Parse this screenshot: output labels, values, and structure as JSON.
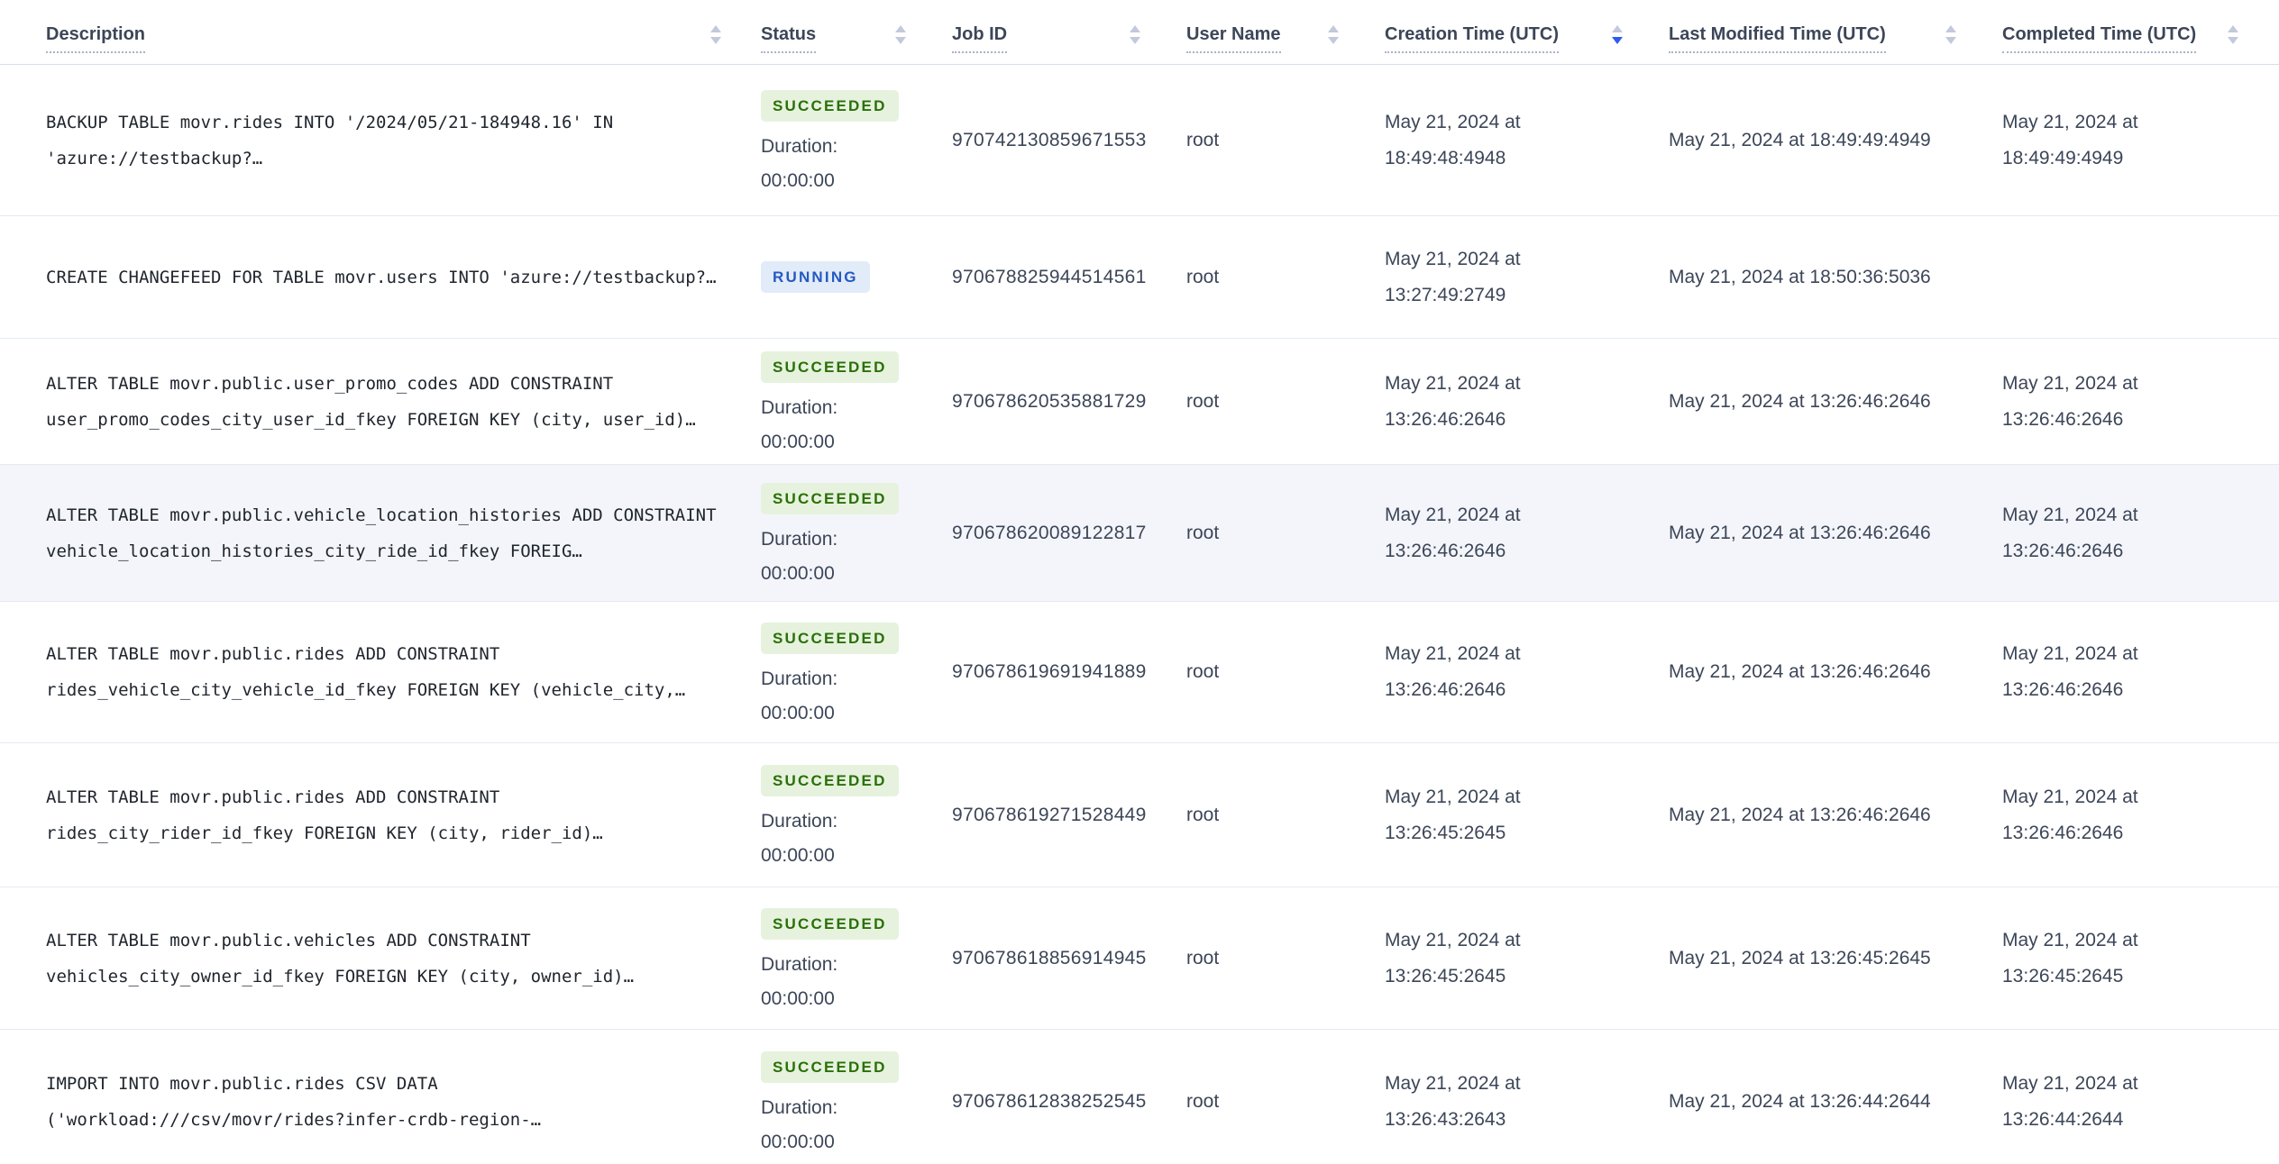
{
  "colors": {
    "sort_active": "#2d5bf0",
    "sort_inactive": "#c2c9da",
    "succeeded_text": "#2a7007",
    "succeeded_bg": "#e6f2de",
    "running_text": "#2459c2",
    "running_bg": "#e2ebf8",
    "row_highlight_bg": "#f3f5fa",
    "header_text": "#3c4658"
  },
  "table": {
    "duration_label": "Duration:",
    "columns": [
      {
        "label": "Description",
        "sort": "none"
      },
      {
        "label": "Status",
        "sort": "none"
      },
      {
        "label": "Job ID",
        "sort": "none"
      },
      {
        "label": "User Name",
        "sort": "none"
      },
      {
        "label": "Creation Time (UTC)",
        "sort": "desc"
      },
      {
        "label": "Last Modified Time (UTC)",
        "sort": "none"
      },
      {
        "label": "Completed Time (UTC)",
        "sort": "none"
      }
    ],
    "rows": [
      {
        "description": "BACKUP TABLE movr.rides INTO '/2024/05/21-184948.16' IN 'azure://testbackup?…",
        "status": "SUCCEEDED",
        "duration": "00:00:00",
        "job_id": "970742130859671553",
        "user_name": "root",
        "creation_time": "May 21, 2024 at 18:49:48:4948",
        "last_modified_time": "May 21, 2024 at 18:49:49:4949",
        "completed_time": "May 21, 2024 at 18:49:49:4949",
        "highlighted": false
      },
      {
        "description": "CREATE CHANGEFEED FOR TABLE movr.users INTO 'azure://testbackup?…",
        "status": "RUNNING",
        "duration": "",
        "job_id": "970678825944514561",
        "user_name": "root",
        "creation_time": "May 21, 2024 at 13:27:49:2749",
        "last_modified_time": "May 21, 2024 at 18:50:36:5036",
        "completed_time": "",
        "highlighted": false
      },
      {
        "description": "ALTER TABLE movr.public.user_promo_codes ADD CONSTRAINT user_promo_codes_city_user_id_fkey FOREIGN KEY (city, user_id)…",
        "status": "SUCCEEDED",
        "duration": "00:00:00",
        "job_id": "970678620535881729",
        "user_name": "root",
        "creation_time": "May 21, 2024 at 13:26:46:2646",
        "last_modified_time": "May 21, 2024 at 13:26:46:2646",
        "completed_time": "May 21, 2024 at 13:26:46:2646",
        "highlighted": false
      },
      {
        "description": "ALTER TABLE movr.public.vehicle_location_histories ADD CONSTRAINT vehicle_location_histories_city_ride_id_fkey FOREIG…",
        "status": "SUCCEEDED",
        "duration": "00:00:00",
        "job_id": "970678620089122817",
        "user_name": "root",
        "creation_time": "May 21, 2024 at 13:26:46:2646",
        "last_modified_time": "May 21, 2024 at 13:26:46:2646",
        "completed_time": "May 21, 2024 at 13:26:46:2646",
        "highlighted": true
      },
      {
        "description": "ALTER TABLE movr.public.rides ADD CONSTRAINT rides_vehicle_city_vehicle_id_fkey FOREIGN KEY (vehicle_city,…",
        "status": "SUCCEEDED",
        "duration": "00:00:00",
        "job_id": "970678619691941889",
        "user_name": "root",
        "creation_time": "May 21, 2024 at 13:26:46:2646",
        "last_modified_time": "May 21, 2024 at 13:26:46:2646",
        "completed_time": "May 21, 2024 at 13:26:46:2646",
        "highlighted": false
      },
      {
        "description": "ALTER TABLE movr.public.rides ADD CONSTRAINT rides_city_rider_id_fkey FOREIGN KEY (city, rider_id)…",
        "status": "SUCCEEDED",
        "duration": "00:00:00",
        "job_id": "970678619271528449",
        "user_name": "root",
        "creation_time": "May 21, 2024 at 13:26:45:2645",
        "last_modified_time": "May 21, 2024 at 13:26:46:2646",
        "completed_time": "May 21, 2024 at 13:26:46:2646",
        "highlighted": false
      },
      {
        "description": "ALTER TABLE movr.public.vehicles ADD CONSTRAINT vehicles_city_owner_id_fkey FOREIGN KEY (city, owner_id)…",
        "status": "SUCCEEDED",
        "duration": "00:00:00",
        "job_id": "970678618856914945",
        "user_name": "root",
        "creation_time": "May 21, 2024 at 13:26:45:2645",
        "last_modified_time": "May 21, 2024 at 13:26:45:2645",
        "completed_time": "May 21, 2024 at 13:26:45:2645",
        "highlighted": false
      },
      {
        "description": "IMPORT INTO movr.public.rides CSV DATA ('workload:///csv/movr/rides?infer-crdb-region-…",
        "status": "SUCCEEDED",
        "duration": "00:00:00",
        "job_id": "970678612838252545",
        "user_name": "root",
        "creation_time": "May 21, 2024 at 13:26:43:2643",
        "last_modified_time": "May 21, 2024 at 13:26:44:2644",
        "completed_time": "May 21, 2024 at 13:26:44:2644",
        "highlighted": false
      }
    ]
  }
}
